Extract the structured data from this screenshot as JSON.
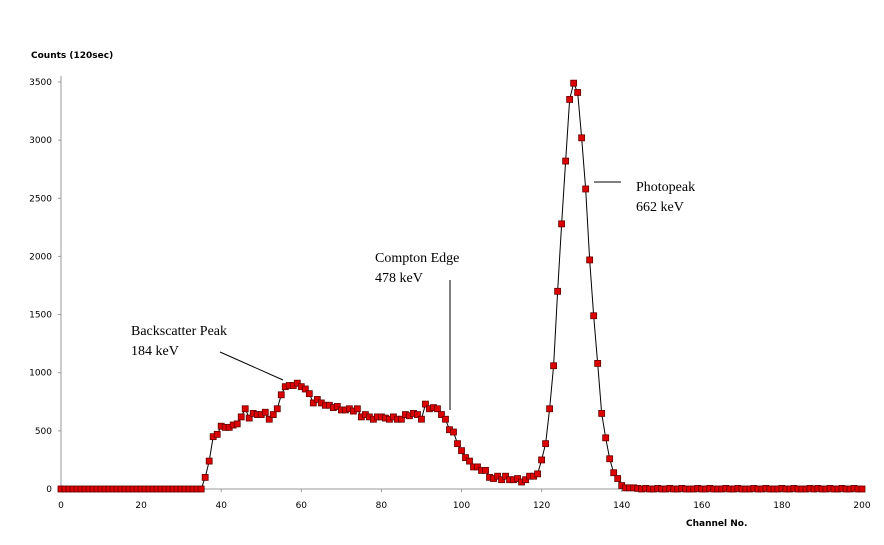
{
  "chart_data": {
    "type": "line",
    "marker": "square",
    "y_label": "Counts (120sec)",
    "x_label": "Channel No.",
    "color": "#dd0000",
    "line_color": "#000000",
    "xlim": [
      0,
      200
    ],
    "xticks": [
      0,
      20,
      40,
      60,
      80,
      100,
      120,
      140,
      160,
      180,
      200
    ],
    "ylim": [
      0,
      3500
    ],
    "yticks": [
      0,
      500,
      1000,
      1500,
      2000,
      2500,
      3000,
      3500
    ],
    "annotations": [
      {
        "lines": [
          "Backscatter Peak",
          "184 keV"
        ]
      },
      {
        "lines": [
          "Compton Edge",
          "478 keV"
        ]
      },
      {
        "lines": [
          "Photopeak",
          "662 keV"
        ]
      }
    ],
    "x": [
      0,
      1,
      2,
      3,
      4,
      5,
      6,
      7,
      8,
      9,
      10,
      11,
      12,
      13,
      14,
      15,
      16,
      17,
      18,
      19,
      20,
      21,
      22,
      23,
      24,
      25,
      26,
      27,
      28,
      29,
      30,
      31,
      32,
      33,
      34,
      35,
      36,
      37,
      38,
      39,
      40,
      41,
      42,
      43,
      44,
      45,
      46,
      47,
      48,
      49,
      50,
      51,
      52,
      53,
      54,
      55,
      56,
      57,
      58,
      59,
      60,
      61,
      62,
      63,
      64,
      65,
      66,
      67,
      68,
      69,
      70,
      71,
      72,
      73,
      74,
      75,
      76,
      77,
      78,
      79,
      80,
      81,
      82,
      83,
      84,
      85,
      86,
      87,
      88,
      89,
      90,
      91,
      92,
      93,
      94,
      95,
      96,
      97,
      98,
      99,
      100,
      101,
      102,
      103,
      104,
      105,
      106,
      107,
      108,
      109,
      110,
      111,
      112,
      113,
      114,
      115,
      116,
      117,
      118,
      119,
      120,
      121,
      122,
      123,
      124,
      125,
      126,
      127,
      128,
      129,
      130,
      131,
      132,
      133,
      134,
      135,
      136,
      137,
      138,
      139,
      140,
      141,
      142,
      143,
      144,
      145,
      146,
      147,
      148,
      149,
      150,
      151,
      152,
      153,
      154,
      155,
      156,
      157,
      158,
      159,
      160,
      161,
      162,
      163,
      164,
      165,
      166,
      167,
      168,
      169,
      170,
      171,
      172,
      173,
      174,
      175,
      176,
      177,
      178,
      179,
      180,
      181,
      182,
      183,
      184,
      185,
      186,
      187,
      188,
      189,
      190,
      191,
      192,
      193,
      194,
      195,
      196,
      197,
      198,
      199,
      200
    ],
    "values": [
      0,
      0,
      0,
      0,
      0,
      0,
      0,
      0,
      0,
      0,
      0,
      0,
      0,
      0,
      0,
      0,
      0,
      0,
      0,
      0,
      0,
      0,
      0,
      0,
      0,
      0,
      0,
      0,
      0,
      0,
      0,
      0,
      0,
      0,
      0,
      0,
      100,
      240,
      450,
      470,
      540,
      530,
      530,
      550,
      560,
      620,
      690,
      610,
      650,
      640,
      640,
      660,
      600,
      640,
      690,
      810,
      880,
      890,
      890,
      910,
      880,
      860,
      820,
      740,
      770,
      740,
      720,
      720,
      700,
      710,
      680,
      680,
      690,
      670,
      690,
      620,
      640,
      620,
      600,
      620,
      620,
      610,
      600,
      620,
      600,
      600,
      640,
      630,
      650,
      640,
      600,
      730,
      690,
      700,
      690,
      640,
      600,
      510,
      490,
      390,
      330,
      270,
      240,
      190,
      190,
      160,
      160,
      100,
      90,
      110,
      80,
      110,
      80,
      80,
      90,
      60,
      80,
      110,
      110,
      130,
      250,
      390,
      690,
      1060,
      1700,
      2280,
      2820,
      3350,
      3490,
      3410,
      3020,
      2580,
      1970,
      1490,
      1080,
      650,
      440,
      260,
      140,
      90,
      30,
      10,
      10,
      10,
      5,
      0,
      5,
      0,
      0,
      5,
      0,
      0,
      5,
      0,
      0,
      5,
      0,
      0,
      0,
      5,
      0,
      0,
      5,
      0,
      0,
      0,
      5,
      0,
      0,
      5,
      0,
      0,
      0,
      5,
      0,
      0,
      5,
      0,
      0,
      0,
      5,
      0,
      0,
      5,
      0,
      0,
      0,
      5,
      0,
      5,
      0,
      0,
      5,
      0,
      0,
      5,
      0,
      0,
      5,
      0,
      0
    ]
  }
}
